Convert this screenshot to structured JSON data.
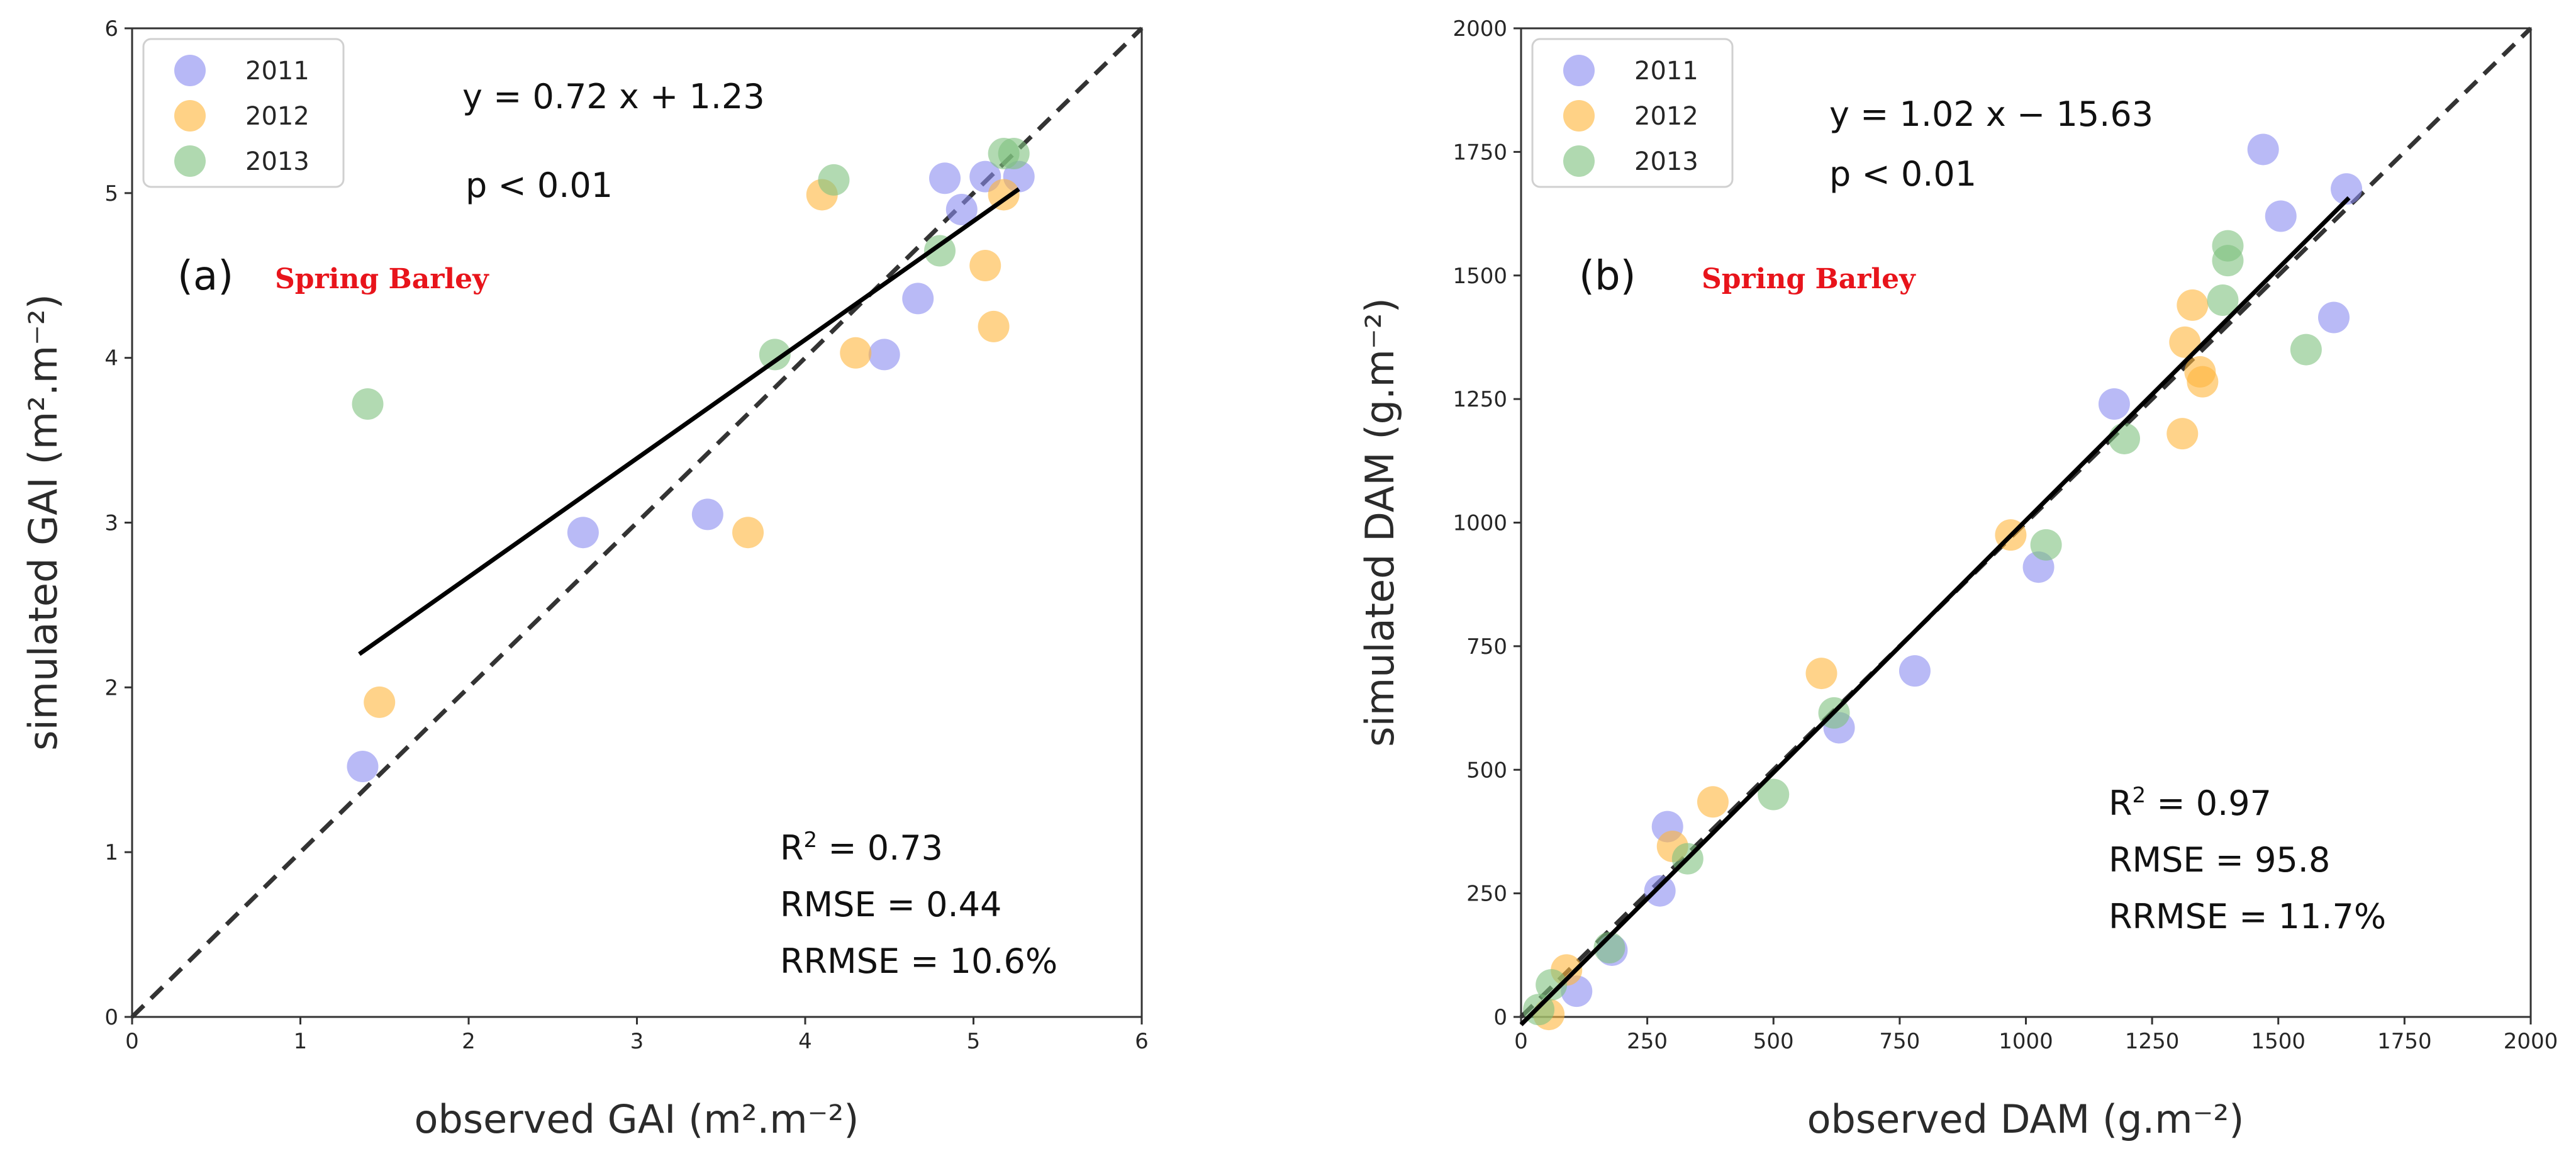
{
  "colors": {
    "2011": "#8a8cf0",
    "2012": "#ffb63c",
    "2013": "#7fc27f",
    "fit": "#000000",
    "identity": "#333333",
    "crop_label": "#e8141b"
  },
  "chart_data": [
    {
      "type": "scatter",
      "panel_label": "(a)",
      "crop_label": "Spring Barley",
      "xlabel": "observed GAI (m².m⁻²)",
      "ylabel": "simulated GAI (m².m⁻²)",
      "xlim": [
        0,
        6
      ],
      "ylim": [
        0,
        6
      ],
      "xticks": [
        "0",
        "1",
        "2",
        "3",
        "4",
        "5",
        "6"
      ],
      "yticks": [
        "0",
        "1",
        "2",
        "3",
        "4",
        "5",
        "6"
      ],
      "grid": false,
      "legend_position": "top-left",
      "series": [
        {
          "name": "2011",
          "points": [
            [
              1.37,
              1.52
            ],
            [
              2.68,
              2.94
            ],
            [
              3.42,
              3.05
            ],
            [
              4.47,
              4.02
            ],
            [
              4.67,
              4.36
            ],
            [
              4.83,
              5.09
            ],
            [
              4.93,
              4.9
            ],
            [
              5.07,
              5.1
            ],
            [
              5.27,
              5.1
            ]
          ]
        },
        {
          "name": "2012",
          "points": [
            [
              1.47,
              1.91
            ],
            [
              3.66,
              2.94
            ],
            [
              4.1,
              4.99
            ],
            [
              4.3,
              4.03
            ],
            [
              5.07,
              4.56
            ],
            [
              5.12,
              4.19
            ],
            [
              5.18,
              4.99
            ]
          ]
        },
        {
          "name": "2013",
          "points": [
            [
              1.4,
              3.72
            ],
            [
              3.82,
              4.02
            ],
            [
              4.17,
              5.08
            ],
            [
              4.8,
              4.65
            ],
            [
              5.18,
              5.24
            ],
            [
              5.24,
              5.24
            ]
          ]
        }
      ],
      "fit_line": {
        "slope": 0.72,
        "intercept": 1.23,
        "x_range": [
          1.35,
          5.27
        ]
      },
      "identity_line": true,
      "equation": "y = 0.72 x + 1.23",
      "p_value": "p < 0.01",
      "stats": {
        "r2_prefix": "R",
        "r2_sup": "2",
        "r2_value": " = 0.73",
        "rmse": "RMSE = 0.44",
        "rrmse": "RRMSE = 10.6%"
      }
    },
    {
      "type": "scatter",
      "panel_label": "(b)",
      "crop_label": "Spring Barley",
      "xlabel": "observed DAM (g.m⁻²)",
      "ylabel": "simulated DAM (g.m⁻²)",
      "xlim": [
        0,
        2000
      ],
      "ylim": [
        0,
        2000
      ],
      "xticks": [
        "0",
        "250",
        "500",
        "750",
        "1000",
        "1250",
        "1500",
        "1750",
        "2000"
      ],
      "yticks": [
        "0",
        "250",
        "500",
        "750",
        "1000",
        "1250",
        "1500",
        "1750",
        "2000"
      ],
      "grid": false,
      "legend_position": "top-left",
      "series": [
        {
          "name": "2011",
          "points": [
            [
              110,
              52
            ],
            [
              180,
              135
            ],
            [
              275,
              255
            ],
            [
              290,
              385
            ],
            [
              630,
              585
            ],
            [
              780,
              700
            ],
            [
              1025,
              910
            ],
            [
              1175,
              1240
            ],
            [
              1470,
              1755
            ],
            [
              1505,
              1620
            ],
            [
              1610,
              1415
            ],
            [
              1635,
              1675
            ]
          ]
        },
        {
          "name": "2012",
          "points": [
            [
              55,
              5
            ],
            [
              90,
              95
            ],
            [
              300,
              345
            ],
            [
              380,
              435
            ],
            [
              595,
              695
            ],
            [
              970,
              975
            ],
            [
              1310,
              1180
            ],
            [
              1315,
              1365
            ],
            [
              1330,
              1440
            ],
            [
              1345,
              1305
            ],
            [
              1350,
              1285
            ]
          ]
        },
        {
          "name": "2013",
          "points": [
            [
              35,
              15
            ],
            [
              60,
              65
            ],
            [
              175,
              140
            ],
            [
              330,
              320
            ],
            [
              500,
              450
            ],
            [
              620,
              615
            ],
            [
              1040,
              955
            ],
            [
              1195,
              1170
            ],
            [
              1390,
              1450
            ],
            [
              1400,
              1530
            ],
            [
              1400,
              1560
            ],
            [
              1555,
              1350
            ]
          ]
        }
      ],
      "fit_line": {
        "slope": 1.02,
        "intercept": -15.63,
        "x_range": [
          0,
          1640
        ]
      },
      "identity_line": true,
      "equation": "y = 1.02 x − 15.63",
      "p_value": "p < 0.01",
      "stats": {
        "r2_prefix": "R",
        "r2_sup": "2",
        "r2_value": " = 0.97",
        "rmse": "RMSE = 95.8",
        "rrmse": "RRMSE = 11.7%"
      }
    }
  ]
}
